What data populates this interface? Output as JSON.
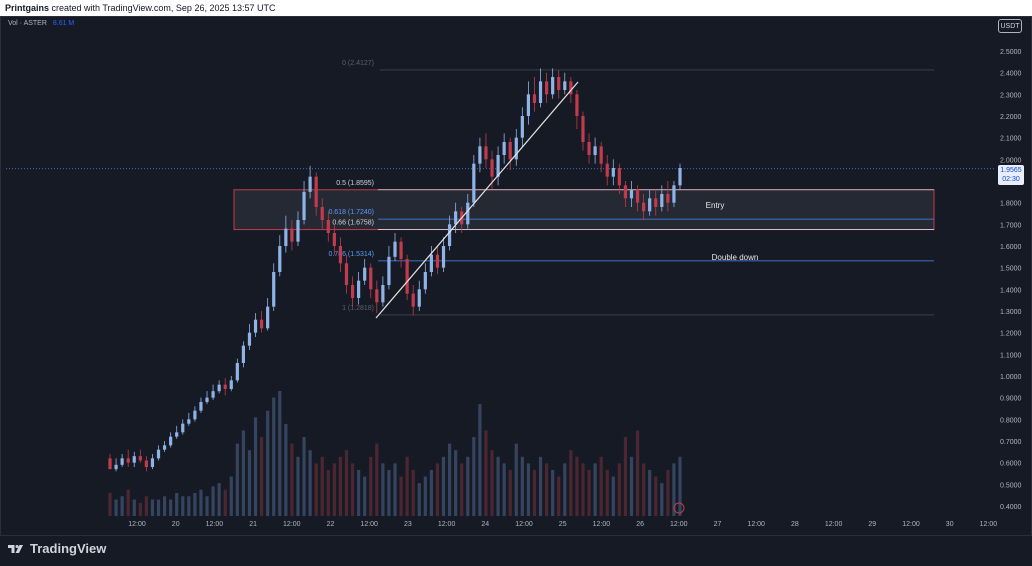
{
  "header": {
    "author": "Printgains",
    "caption": "created with TradingView.com, Sep 26, 2025 13:57 UTC"
  },
  "volume_label": {
    "prefix": "Vol · ASTER",
    "value": "8.61 M"
  },
  "currency_button": "USDT",
  "brand": "TradingView",
  "current_price": {
    "value": "1.9565",
    "countdown": "02:30"
  },
  "colors": {
    "up": "#8fb3e6",
    "down": "#c23b4c",
    "background": "#161a25",
    "fib_line": "#4a8cf7",
    "zone": "#c23b4c"
  },
  "chart_data": {
    "type": "candlestick",
    "symbol": "ASTER",
    "quote": "USDT",
    "y_axis": {
      "min": 0.4,
      "max": 2.5,
      "ticks": [
        "2.5000",
        "2.4000",
        "2.3000",
        "2.2000",
        "2.1000",
        "2.0000",
        "1.9000",
        "1.8000",
        "1.7000",
        "1.6000",
        "1.5000",
        "1.4000",
        "1.3000",
        "1.2000",
        "1.1000",
        "1.0000",
        "0.9000",
        "0.8000",
        "0.7000",
        "0.6000",
        "0.5000",
        "0.4000"
      ]
    },
    "x_axis": {
      "ticks": [
        "12:00",
        "20",
        "12:00",
        "21",
        "12:00",
        "22",
        "12:00",
        "23",
        "12:00",
        "24",
        "12:00",
        "25",
        "12:00",
        "26",
        "12:00",
        "27",
        "12:00",
        "28",
        "12:00",
        "29",
        "12:00",
        "30",
        "12:00"
      ]
    },
    "fib_levels": [
      {
        "label": "0 (2.4127)",
        "value": 2.4127
      },
      {
        "label": "0.5 (1.8595)",
        "value": 1.8595
      },
      {
        "label": "0.618 (1.7240)",
        "value": 1.724
      },
      {
        "label": "0.66 (1.6758)",
        "value": 1.6758
      },
      {
        "label": "0.786 (1.5314)",
        "value": 1.5314
      },
      {
        "label": "1 (1.2818)",
        "value": 1.2818
      }
    ],
    "zones": [
      {
        "label": "Entry",
        "top": 1.8595,
        "bottom": 1.6758
      }
    ],
    "annotations": [
      {
        "label": "Entry",
        "price": 1.79
      },
      {
        "label": "Double down",
        "price": 1.55
      }
    ],
    "current_price": 1.9565,
    "candles": [
      [
        0.62,
        0.57,
        0.64,
        0.6
      ],
      [
        0.57,
        0.59,
        0.62,
        0.56
      ],
      [
        0.59,
        0.62,
        0.64,
        0.58
      ],
      [
        0.62,
        0.6,
        0.66,
        0.58
      ],
      [
        0.6,
        0.63,
        0.65,
        0.58
      ],
      [
        0.63,
        0.61,
        0.66,
        0.6
      ],
      [
        0.61,
        0.58,
        0.63,
        0.56
      ],
      [
        0.58,
        0.62,
        0.64,
        0.57
      ],
      [
        0.62,
        0.66,
        0.68,
        0.61
      ],
      [
        0.66,
        0.68,
        0.7,
        0.65
      ],
      [
        0.68,
        0.72,
        0.74,
        0.67
      ],
      [
        0.72,
        0.74,
        0.77,
        0.71
      ],
      [
        0.74,
        0.78,
        0.8,
        0.73
      ],
      [
        0.78,
        0.8,
        0.83,
        0.77
      ],
      [
        0.8,
        0.84,
        0.86,
        0.79
      ],
      [
        0.84,
        0.88,
        0.9,
        0.83
      ],
      [
        0.88,
        0.9,
        0.93,
        0.87
      ],
      [
        0.9,
        0.93,
        0.96,
        0.89
      ],
      [
        0.93,
        0.96,
        0.98,
        0.92
      ],
      [
        0.96,
        0.94,
        0.99,
        0.91
      ],
      [
        0.94,
        0.98,
        1.0,
        0.93
      ],
      [
        0.98,
        1.06,
        1.08,
        0.97
      ],
      [
        1.06,
        1.14,
        1.16,
        1.04
      ],
      [
        1.14,
        1.2,
        1.24,
        1.12
      ],
      [
        1.2,
        1.26,
        1.29,
        1.18
      ],
      [
        1.26,
        1.22,
        1.3,
        1.2
      ],
      [
        1.22,
        1.32,
        1.36,
        1.21
      ],
      [
        1.32,
        1.48,
        1.52,
        1.3
      ],
      [
        1.48,
        1.6,
        1.65,
        1.46
      ],
      [
        1.6,
        1.68,
        1.74,
        1.57
      ],
      [
        1.68,
        1.62,
        1.72,
        1.58
      ],
      [
        1.62,
        1.72,
        1.76,
        1.6
      ],
      [
        1.72,
        1.85,
        1.9,
        1.7
      ],
      [
        1.85,
        1.92,
        1.97,
        1.82
      ],
      [
        1.92,
        1.78,
        1.94,
        1.74
      ],
      [
        1.78,
        1.72,
        1.82,
        1.68
      ],
      [
        1.72,
        1.66,
        1.76,
        1.62
      ],
      [
        1.66,
        1.6,
        1.7,
        1.56
      ],
      [
        1.6,
        1.52,
        1.64,
        1.48
      ],
      [
        1.52,
        1.42,
        1.56,
        1.38
      ],
      [
        1.42,
        1.36,
        1.46,
        1.32
      ],
      [
        1.36,
        1.44,
        1.48,
        1.33
      ],
      [
        1.44,
        1.5,
        1.54,
        1.42
      ],
      [
        1.5,
        1.4,
        1.52,
        1.36
      ],
      [
        1.4,
        1.34,
        1.44,
        1.29
      ],
      [
        1.34,
        1.42,
        1.46,
        1.32
      ],
      [
        1.42,
        1.55,
        1.6,
        1.4
      ],
      [
        1.55,
        1.62,
        1.66,
        1.53
      ],
      [
        1.62,
        1.54,
        1.64,
        1.5
      ],
      [
        1.54,
        1.38,
        1.56,
        1.35
      ],
      [
        1.38,
        1.32,
        1.42,
        1.28
      ],
      [
        1.32,
        1.4,
        1.44,
        1.3
      ],
      [
        1.4,
        1.48,
        1.52,
        1.38
      ],
      [
        1.48,
        1.56,
        1.6,
        1.46
      ],
      [
        1.56,
        1.5,
        1.6,
        1.47
      ],
      [
        1.5,
        1.6,
        1.64,
        1.48
      ],
      [
        1.6,
        1.7,
        1.74,
        1.58
      ],
      [
        1.7,
        1.76,
        1.8,
        1.66
      ],
      [
        1.76,
        1.7,
        1.78,
        1.66
      ],
      [
        1.7,
        1.8,
        1.84,
        1.68
      ],
      [
        1.8,
        1.98,
        2.02,
        1.78
      ],
      [
        1.98,
        2.06,
        2.1,
        1.94
      ],
      [
        2.06,
        2.0,
        2.12,
        1.96
      ],
      [
        2.0,
        1.92,
        2.04,
        1.86
      ],
      [
        1.92,
        2.02,
        2.06,
        1.88
      ],
      [
        2.02,
        2.08,
        2.12,
        1.98
      ],
      [
        2.08,
        2.0,
        2.1,
        1.95
      ],
      [
        2.0,
        2.1,
        2.14,
        1.97
      ],
      [
        2.1,
        2.2,
        2.24,
        2.06
      ],
      [
        2.2,
        2.3,
        2.36,
        2.16
      ],
      [
        2.3,
        2.26,
        2.38,
        2.22
      ],
      [
        2.26,
        2.36,
        2.42,
        2.24
      ],
      [
        2.36,
        2.3,
        2.4,
        2.26
      ],
      [
        2.3,
        2.38,
        2.42,
        2.28
      ],
      [
        2.38,
        2.32,
        2.41,
        2.28
      ],
      [
        2.32,
        2.36,
        2.4,
        2.3
      ],
      [
        2.36,
        2.3,
        2.38,
        2.26
      ],
      [
        2.3,
        2.2,
        2.32,
        2.14
      ],
      [
        2.2,
        2.08,
        2.22,
        2.04
      ],
      [
        2.08,
        2.02,
        2.12,
        1.98
      ],
      [
        2.02,
        2.06,
        2.1,
        1.98
      ],
      [
        2.06,
        1.98,
        2.08,
        1.94
      ],
      [
        1.98,
        1.92,
        2.02,
        1.88
      ],
      [
        1.92,
        1.96,
        2.0,
        1.88
      ],
      [
        1.96,
        1.88,
        1.98,
        1.84
      ],
      [
        1.88,
        1.82,
        1.9,
        1.78
      ],
      [
        1.82,
        1.86,
        1.9,
        1.78
      ],
      [
        1.86,
        1.8,
        1.88,
        1.76
      ],
      [
        1.8,
        1.76,
        1.84,
        1.72
      ],
      [
        1.76,
        1.82,
        1.86,
        1.74
      ],
      [
        1.82,
        1.78,
        1.86,
        1.74
      ],
      [
        1.78,
        1.84,
        1.88,
        1.76
      ],
      [
        1.84,
        1.8,
        1.9,
        1.76
      ],
      [
        1.8,
        1.88,
        1.9,
        1.78
      ],
      [
        1.88,
        1.96,
        1.98,
        1.86
      ]
    ],
    "volumes": [
      0.7,
      0.5,
      0.6,
      0.8,
      0.5,
      0.4,
      0.6,
      0.5,
      0.5,
      0.6,
      0.5,
      0.7,
      0.6,
      0.6,
      0.7,
      0.8,
      0.6,
      0.9,
      1.0,
      0.8,
      1.2,
      2.2,
      2.6,
      2.0,
      3.0,
      2.4,
      3.2,
      3.6,
      3.8,
      2.8,
      2.2,
      1.8,
      2.4,
      2.0,
      1.6,
      1.8,
      1.4,
      1.6,
      1.8,
      2.0,
      1.6,
      1.4,
      1.2,
      1.8,
      2.2,
      1.6,
      1.4,
      1.6,
      1.2,
      1.8,
      1.4,
      1.0,
      1.2,
      1.4,
      1.6,
      1.8,
      2.2,
      2.0,
      1.6,
      1.8,
      2.4,
      3.4,
      2.6,
      2.0,
      1.8,
      1.6,
      1.4,
      2.2,
      1.8,
      1.6,
      1.4,
      1.8,
      1.6,
      1.4,
      1.2,
      1.6,
      2.0,
      1.8,
      1.6,
      1.4,
      1.6,
      1.8,
      1.4,
      1.2,
      1.6,
      2.4,
      1.8,
      2.6,
      1.6,
      1.4,
      1.2,
      1.0,
      1.4,
      1.6,
      1.8
    ]
  }
}
